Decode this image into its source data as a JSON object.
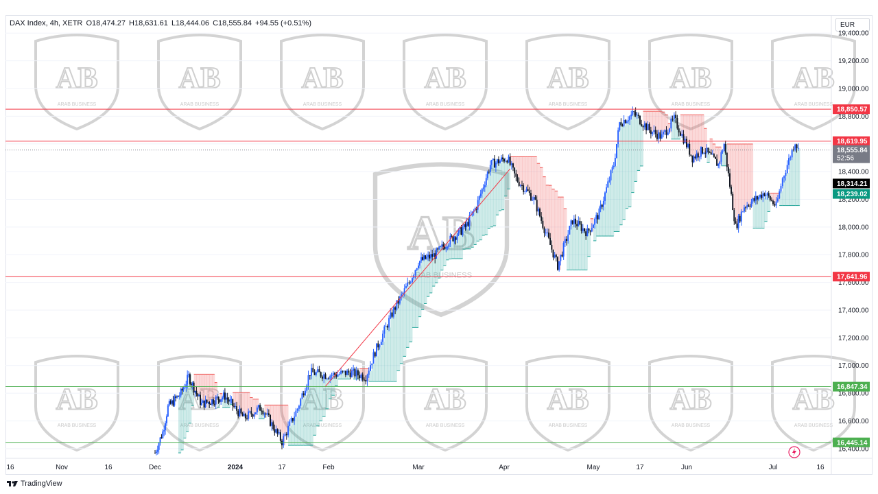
{
  "legend": {
    "symbol": "DAX Index, 4h, XETR",
    "open": "O18,474.27",
    "high": "H18,631.61",
    "low": "L18,444.06",
    "close": "C18,555.84",
    "change": "+94.55 (+0.51%)"
  },
  "currency_button": "EUR",
  "footer": {
    "brand": "TradingView",
    "icon": "tradingview-logo-icon"
  },
  "watermark": {
    "text": "ARAB BUSINESS",
    "logo_letters": "AB"
  },
  "colors": {
    "up_candle": "#2962ff",
    "down_candle": "#131722",
    "resistance": "#f23645",
    "support": "#4caf50",
    "cloud_bull": "#26a69a",
    "cloud_bear": "#ef5350",
    "current_price_bg": "#787b86",
    "marker_black": "#000000",
    "marker_teal": "#089981"
  },
  "chart_data": {
    "type": "candlestick",
    "title": "DAX Index, 4h, XETR",
    "x_axis_ticks": [
      "16",
      "Nov",
      "16",
      "Dec",
      "2024",
      "17",
      "Feb",
      "Mar",
      "Apr",
      "May",
      "17",
      "Jun",
      "Jul",
      "16"
    ],
    "x_axis_bold": [
      "2024"
    ],
    "y_axis_ticks": [
      "19,400.00",
      "19,200.00",
      "19,000.00",
      "18,800.00",
      "18,600.00",
      "18,400.00",
      "18,200.00",
      "18,000.00",
      "17,800.00",
      "17,600.00",
      "17,400.00",
      "17,200.00",
      "17,000.00",
      "16,800.00",
      "16,600.00",
      "16,400.00"
    ],
    "y_axis_values": [
      19400,
      19200,
      19000,
      18800,
      18600,
      18400,
      18200,
      18000,
      17800,
      17600,
      17400,
      17200,
      17000,
      16800,
      16600,
      16400
    ],
    "ylim": [
      16330,
      19530
    ],
    "horizontal_levels": [
      {
        "label": "18,850.57",
        "value": 18850.57,
        "role": "resistance"
      },
      {
        "label": "18,619.95",
        "value": 18619.95,
        "role": "resistance"
      },
      {
        "label": "17,641.96",
        "value": 17641.96,
        "role": "resistance"
      },
      {
        "label": "16,847.34",
        "value": 16847.34,
        "role": "support"
      },
      {
        "label": "16,445.14",
        "value": 16445.14,
        "role": "support"
      }
    ],
    "price_markers": [
      {
        "label": "18,555.84",
        "sub": "52:56",
        "value": 18555.84,
        "role": "current"
      },
      {
        "label": "18,314.21",
        "value": 18314.21,
        "role": "black"
      },
      {
        "label": "18,239.02",
        "value": 18239.02,
        "role": "teal"
      }
    ],
    "trendline": {
      "from": {
        "date": "Jan 31",
        "value": 16850
      },
      "to": {
        "date": "Apr 3",
        "value": 18420
      }
    },
    "price_path": [
      {
        "date": "Dec 1",
        "value": 16370
      },
      {
        "date": "Dec 4",
        "value": 16520
      },
      {
        "date": "Dec 6",
        "value": 16700
      },
      {
        "date": "Dec 11",
        "value": 16800
      },
      {
        "date": "Dec 14",
        "value": 16920
      },
      {
        "date": "Dec 19",
        "value": 16720
      },
      {
        "date": "Dec 22",
        "value": 16740
      },
      {
        "date": "Dec 28",
        "value": 16780
      },
      {
        "date": "Jan 4",
        "value": 16620
      },
      {
        "date": "Jan 10",
        "value": 16700
      },
      {
        "date": "Jan 17",
        "value": 16450
      },
      {
        "date": "Jan 22",
        "value": 16690
      },
      {
        "date": "Jan 26",
        "value": 16950
      },
      {
        "date": "Feb 1",
        "value": 16930
      },
      {
        "date": "Feb 8",
        "value": 16950
      },
      {
        "date": "Feb 13",
        "value": 16920
      },
      {
        "date": "Feb 16",
        "value": 17100
      },
      {
        "date": "Feb 22",
        "value": 17400
      },
      {
        "date": "Feb 27",
        "value": 17600
      },
      {
        "date": "Mar 1",
        "value": 17750
      },
      {
        "date": "Mar 7",
        "value": 17800
      },
      {
        "date": "Mar 12",
        "value": 17900
      },
      {
        "date": "Mar 18",
        "value": 18000
      },
      {
        "date": "Mar 22",
        "value": 18150
      },
      {
        "date": "Mar 27",
        "value": 18450
      },
      {
        "date": "Apr 2",
        "value": 18500
      },
      {
        "date": "Apr 5",
        "value": 18350
      },
      {
        "date": "Apr 11",
        "value": 18200
      },
      {
        "date": "Apr 16",
        "value": 17900
      },
      {
        "date": "Apr 19",
        "value": 17720
      },
      {
        "date": "Apr 24",
        "value": 18050
      },
      {
        "date": "Apr 29",
        "value": 17960
      },
      {
        "date": "May 3",
        "value": 18100
      },
      {
        "date": "May 8",
        "value": 18450
      },
      {
        "date": "May 10",
        "value": 18750
      },
      {
        "date": "May 15",
        "value": 18820
      },
      {
        "date": "May 20",
        "value": 18700
      },
      {
        "date": "May 24",
        "value": 18650
      },
      {
        "date": "May 28",
        "value": 18780
      },
      {
        "date": "Jun 3",
        "value": 18500
      },
      {
        "date": "Jun 7",
        "value": 18560
      },
      {
        "date": "Jun 12",
        "value": 18450
      },
      {
        "date": "Jun 14",
        "value": 18600
      },
      {
        "date": "Jun 18",
        "value": 18000
      },
      {
        "date": "Jun 21",
        "value": 18150
      },
      {
        "date": "Jun 25",
        "value": 18200
      },
      {
        "date": "Jun 28",
        "value": 18250
      },
      {
        "date": "Jul 2",
        "value": 18150
      },
      {
        "date": "Jul 4",
        "value": 18350
      },
      {
        "date": "Jul 8",
        "value": 18620
      },
      {
        "date": "Jul 9",
        "value": 18556
      }
    ]
  }
}
